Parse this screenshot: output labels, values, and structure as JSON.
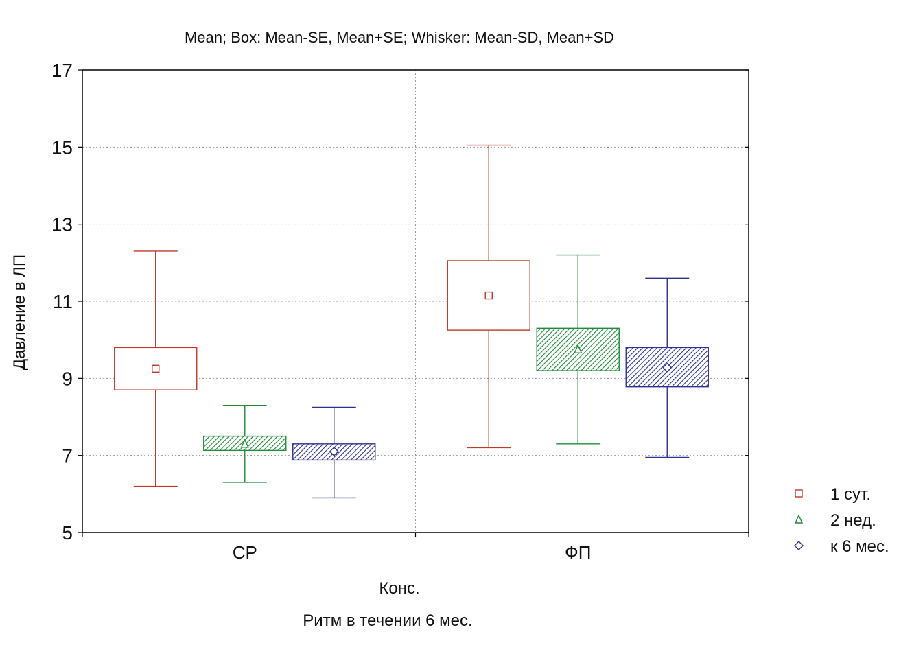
{
  "chart_data": {
    "type": "box",
    "title": "Mean; Box: Mean-SE, Mean+SE; Whisker: Mean-SD, Mean+SD",
    "ylabel": "Давление в ЛП",
    "xlabel_lines": [
      "Конс.",
      "Ритм в  течении 6 мес."
    ],
    "categories": [
      "СР",
      "ФП"
    ],
    "ylim": [
      5,
      17
    ],
    "yticks": [
      5,
      7,
      9,
      11,
      13,
      15,
      17
    ],
    "grid": true,
    "legend_position": "right",
    "series": [
      {
        "name": "1 сут.",
        "marker": "square",
        "color": "#c0392b",
        "fill": "none",
        "values": [
          {
            "mean": 9.25,
            "box_low": 8.7,
            "box_high": 9.8,
            "whisker_low": 6.2,
            "whisker_high": 12.3
          },
          {
            "mean": 11.15,
            "box_low": 10.25,
            "box_high": 12.05,
            "whisker_low": 7.2,
            "whisker_high": 15.05
          }
        ]
      },
      {
        "name": "2 нед.",
        "marker": "triangle",
        "color": "#1e8c3a",
        "fill": "hatch",
        "values": [
          {
            "mean": 7.3,
            "box_low": 7.13,
            "box_high": 7.5,
            "whisker_low": 6.3,
            "whisker_high": 8.3
          },
          {
            "mean": 9.75,
            "box_low": 9.2,
            "box_high": 10.3,
            "whisker_low": 7.3,
            "whisker_high": 12.2
          }
        ]
      },
      {
        "name": "к 6 мес.",
        "marker": "diamond",
        "color": "#2e3192",
        "fill": "hatch",
        "values": [
          {
            "mean": 7.1,
            "box_low": 6.88,
            "box_high": 7.3,
            "whisker_low": 5.9,
            "whisker_high": 8.25
          },
          {
            "mean": 9.28,
            "box_low": 8.78,
            "box_high": 9.8,
            "whisker_low": 6.95,
            "whisker_high": 11.6
          }
        ]
      }
    ]
  }
}
